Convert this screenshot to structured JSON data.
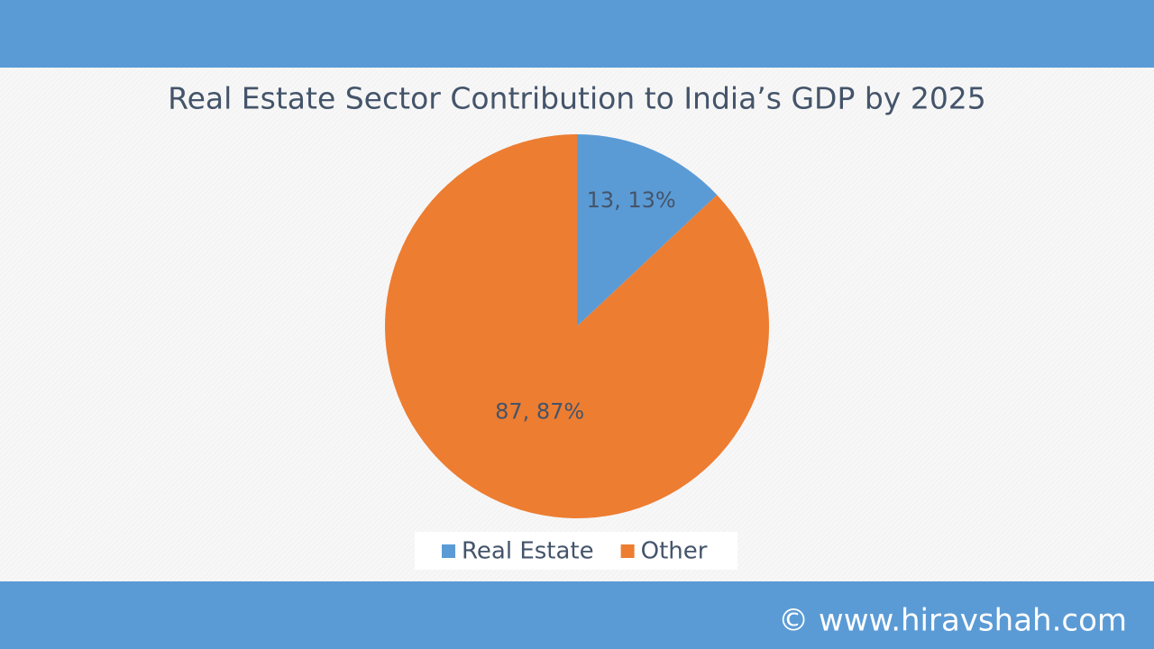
{
  "chart_data": {
    "type": "pie",
    "title": "Real Estate Sector Contribution to India’s GDP by 2025",
    "categories": [
      "Real Estate",
      "Other"
    ],
    "values": [
      13,
      87
    ],
    "value_labels": [
      "13, 13%",
      "87, 87%"
    ],
    "colors": [
      "#5b9bd5",
      "#ed7d31"
    ],
    "legend": "bottom"
  },
  "watermark": "© www.hiravshah.com"
}
